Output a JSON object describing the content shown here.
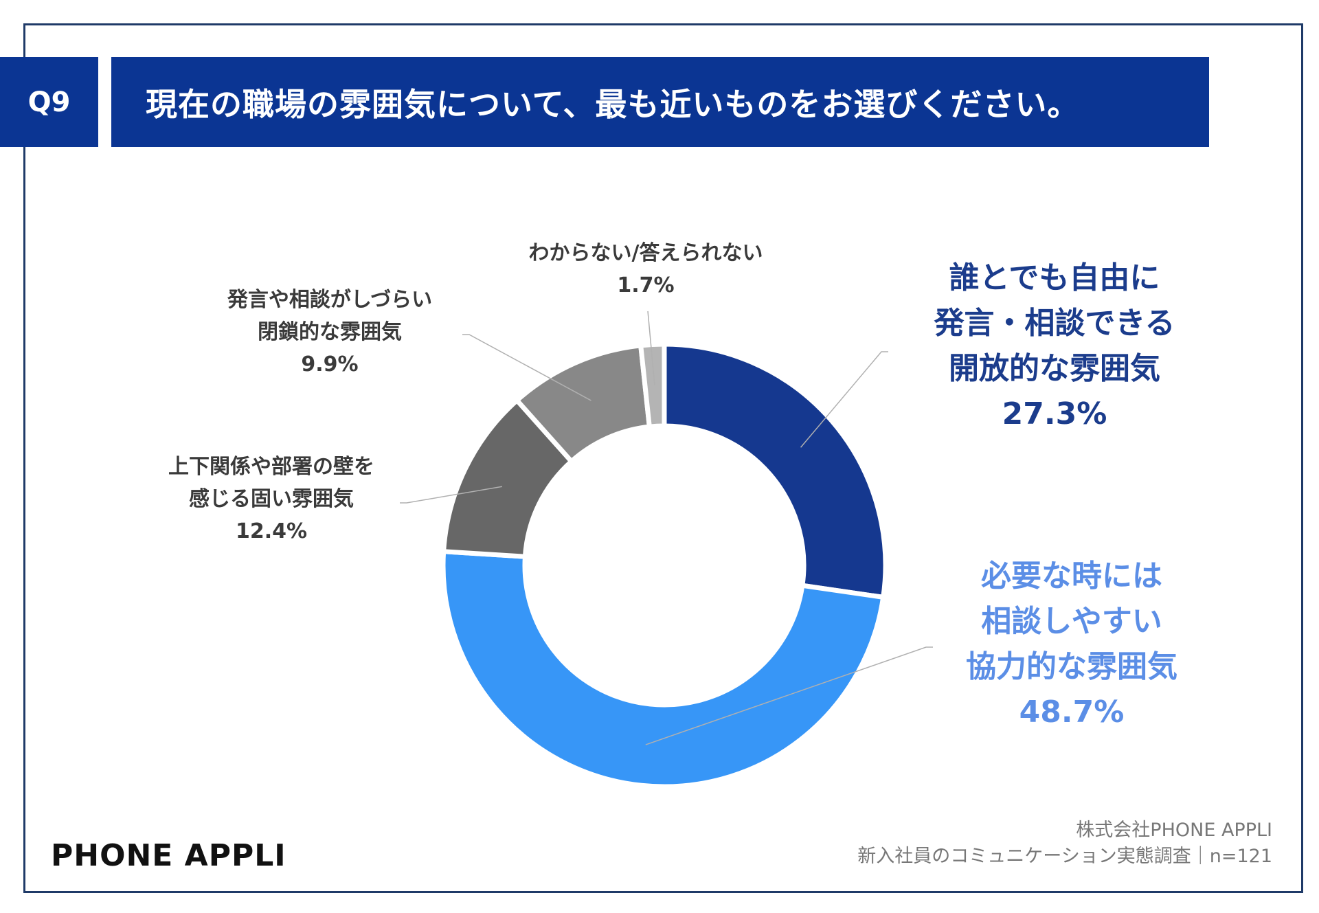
{
  "question": {
    "number": "Q9",
    "title": "現在の職場の雰囲気について、最も近いものをお選びください。"
  },
  "chart_data": {
    "type": "pie",
    "subtype": "donut",
    "title": "現在の職場の雰囲気について、最も近いものをお選びください。",
    "slices": [
      {
        "lines": [
          "誰とでも自由に",
          "発言・相談できる",
          "開放的な雰囲気"
        ],
        "value": 27.3,
        "value_label": "27.3%",
        "color": "#15388f"
      },
      {
        "lines": [
          "必要な時には",
          "相談しやすい",
          "協力的な雰囲気"
        ],
        "value": 48.7,
        "value_label": "48.7%",
        "color": "#3796f7"
      },
      {
        "lines": [
          "上下関係や部署の壁を",
          "感じる固い雰囲気"
        ],
        "value": 12.4,
        "value_label": "12.4%",
        "color": "#676767"
      },
      {
        "lines": [
          "発言や相談がしづらい",
          "閉鎖的な雰囲気"
        ],
        "value": 9.9,
        "value_label": "9.9%",
        "color": "#888888"
      },
      {
        "lines": [
          "わからない/答えられない"
        ],
        "value": 1.7,
        "value_label": "1.7%",
        "color": "#b4b4b4"
      }
    ],
    "start": "top (12 o'clock)",
    "direction": "clockwise"
  },
  "brand": "PHONE  APPLI",
  "source": {
    "company": "株式会社PHONE APPLI",
    "survey": "新入社員のコミュニケーション実態調査｜n=121"
  },
  "colors": {
    "header_bg": "#0b3593",
    "frame": "#1f3a68"
  }
}
